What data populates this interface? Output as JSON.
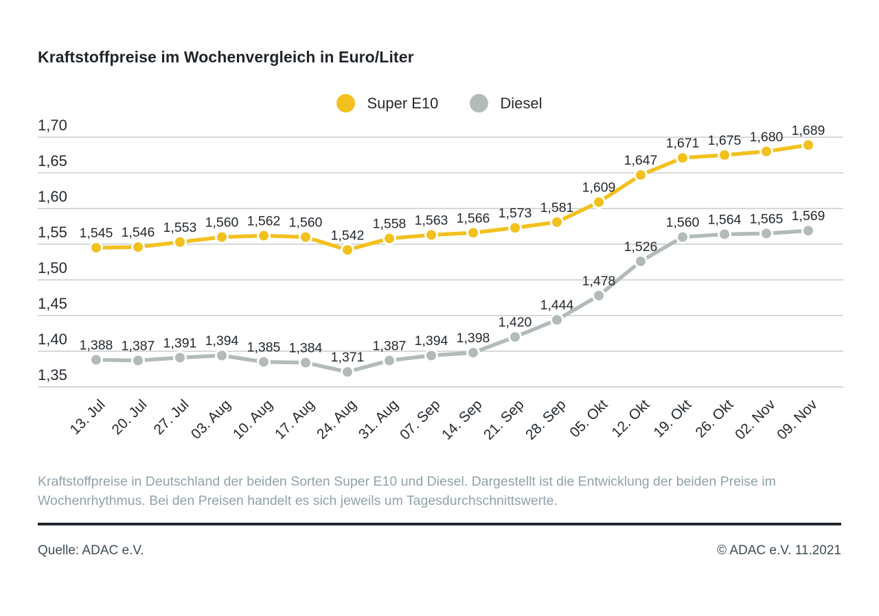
{
  "title": "Kraftstoffpreise im Wochenvergleich in Euro/Liter",
  "chart_data": {
    "type": "line",
    "categories": [
      "13. Jul",
      "20. Jul",
      "27. Jul",
      "03. Aug",
      "10. Aug",
      "17. Aug",
      "24. Aug",
      "31. Aug",
      "07. Sep",
      "14. Sep",
      "21. Sep",
      "28. Sep",
      "05. Okt",
      "12. Okt",
      "19. Okt",
      "26. Okt",
      "02. Nov",
      "09. Nov"
    ],
    "series": [
      {
        "name": "Diesel",
        "color": "#b2bbba",
        "values": [
          1.388,
          1.387,
          1.391,
          1.394,
          1.385,
          1.384,
          1.371,
          1.387,
          1.394,
          1.398,
          1.42,
          1.444,
          1.478,
          1.526,
          1.56,
          1.564,
          1.565,
          1.569
        ]
      },
      {
        "name": "Super E10",
        "color": "#f2c11e",
        "values": [
          1.545,
          1.546,
          1.553,
          1.56,
          1.562,
          1.56,
          1.542,
          1.558,
          1.563,
          1.566,
          1.573,
          1.581,
          1.609,
          1.647,
          1.671,
          1.675,
          1.68,
          1.689
        ]
      }
    ],
    "title": "Kraftstoffpreise im Wochenvergleich in Euro/Liter",
    "xlabel": "",
    "ylabel": "",
    "ylim": [
      1.35,
      1.7
    ],
    "ytick_step": 0.05,
    "yticks": [
      "1,70",
      "1,65",
      "1,60",
      "1,55",
      "1,50",
      "1,45",
      "1,40",
      "1,35"
    ],
    "decimal_separator": ",",
    "grid": true,
    "legend_position": "top-center",
    "legend_order": [
      "Super E10",
      "Diesel"
    ]
  },
  "legend": {
    "super_e10_label": "Super E10",
    "diesel_label": "Diesel"
  },
  "footer": {
    "description": "Kraftstoffpreise in Deutschland der beiden Sorten Super E10 und Diesel. Dargestellt ist die Entwicklung der beiden Preise im Wochenrhythmus. Bei den Preisen handelt es sich jeweils um Tagesdurchschnittswerte.",
    "source": "Quelle: ADAC e.V.",
    "copyright": "© ADAC e.V. 11.2021"
  },
  "colors": {
    "super_e10": "#f2c11e",
    "diesel": "#b2bbba",
    "gridline": "#cccccc",
    "axis_text": "#23292e",
    "title_text": "#1f2429",
    "description_text": "#90a2a9",
    "source_text": "#3d4c54",
    "divider": "#20262b",
    "background": "#ffffff"
  }
}
